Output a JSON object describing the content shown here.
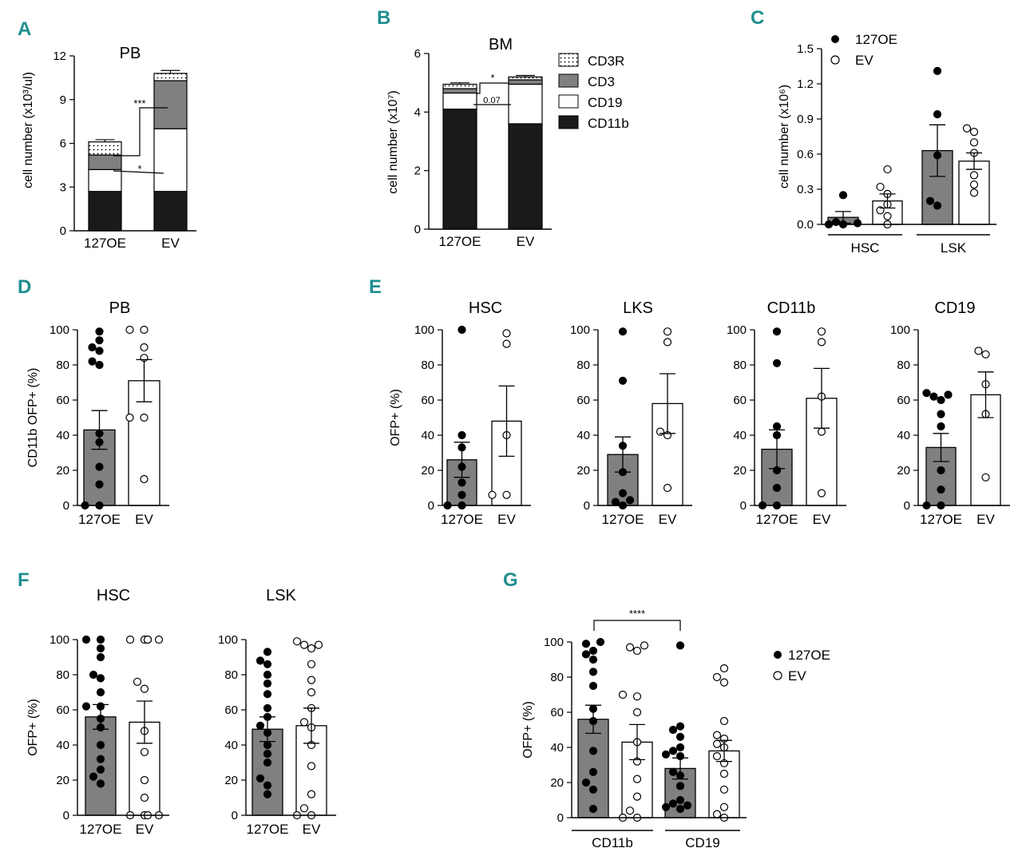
{
  "panel_labels": [
    "A",
    "B",
    "C",
    "D",
    "E",
    "F",
    "G"
  ],
  "colors": {
    "label": "#1f8f8f",
    "bar_oe": "#808080",
    "bar_ev": "#ffffff",
    "cd11b": "#1a1a1a",
    "cd3": "#808080",
    "cd19": "#ffffff"
  },
  "chart_data": [
    {
      "id": "A",
      "type": "bar",
      "stacked": true,
      "title": "PB",
      "ylabel": "cell number (x10³/ul)",
      "ylim": [
        0,
        12
      ],
      "yticks": [
        0,
        3,
        6,
        9,
        12
      ],
      "categories": [
        "127OE",
        "EV"
      ],
      "series": [
        {
          "name": "CD11b",
          "values": [
            2.7,
            2.7
          ],
          "err": [
            0.9,
            0.6
          ]
        },
        {
          "name": "CD19",
          "values": [
            1.5,
            4.3
          ],
          "err": [
            0.6,
            0.9
          ]
        },
        {
          "name": "CD3",
          "values": [
            1.0,
            3.3
          ],
          "err": [
            0.4,
            0.3
          ]
        },
        {
          "name": "CD3R",
          "values": [
            0.9,
            0.5
          ],
          "err": [
            0.15,
            0.2
          ]
        }
      ],
      "annotations": [
        {
          "text": "***"
        },
        {
          "text": "*"
        }
      ]
    },
    {
      "id": "B",
      "type": "bar",
      "stacked": true,
      "title": "BM",
      "ylabel": "cell number (x10⁷)",
      "ylim": [
        0,
        6
      ],
      "yticks": [
        0,
        2,
        4,
        6
      ],
      "categories": [
        "127OE",
        "EV"
      ],
      "series": [
        {
          "name": "CD11b",
          "values": [
            4.1,
            3.6
          ],
          "err": [
            0.3,
            0.7
          ]
        },
        {
          "name": "CD19",
          "values": [
            0.55,
            1.35
          ],
          "err": [
            0.1,
            0.15
          ]
        },
        {
          "name": "CD3",
          "values": [
            0.15,
            0.15
          ],
          "err": [
            0.05,
            0.05
          ]
        },
        {
          "name": "CD3R",
          "values": [
            0.15,
            0.1
          ],
          "err": [
            0.05,
            0.05
          ]
        }
      ],
      "legend": [
        "CD3R",
        "CD3",
        "CD19",
        "CD11b"
      ],
      "annotations": [
        {
          "text": "*"
        },
        {
          "text": "0.07"
        }
      ]
    },
    {
      "id": "C",
      "type": "bar+scatter",
      "title": "",
      "ylabel": "cell number (x10⁶)",
      "ylim": [
        0,
        1.5
      ],
      "yticks": [
        "0.0",
        "0.3",
        "0.6",
        "0.9",
        "1.2",
        "1.5"
      ],
      "group_labels": [
        "HSC",
        "LSK"
      ],
      "bars": [
        {
          "group": "HSC",
          "series": "127OE",
          "mean": 0.06,
          "sem": 0.05,
          "points": [
            0.0,
            0.0,
            0.01,
            0.02,
            0.25
          ]
        },
        {
          "group": "HSC",
          "series": "EV",
          "mean": 0.2,
          "sem": 0.06,
          "points": [
            0.0,
            0.07,
            0.12,
            0.17,
            0.26,
            0.32,
            0.47
          ]
        },
        {
          "group": "LSK",
          "series": "127OE",
          "mean": 0.63,
          "sem": 0.22,
          "points": [
            0.16,
            0.2,
            0.59,
            0.94,
            1.31
          ]
        },
        {
          "group": "LSK",
          "series": "EV",
          "mean": 0.54,
          "sem": 0.07,
          "points": [
            0.27,
            0.34,
            0.42,
            0.61,
            0.7,
            0.79,
            0.82
          ]
        }
      ],
      "legend": [
        "127OE",
        "EV"
      ]
    },
    {
      "id": "D",
      "type": "bar+scatter",
      "title": "PB",
      "ylabel": "CD11b OFP+ (%)",
      "ylim": [
        0,
        100
      ],
      "yticks": [
        0,
        20,
        40,
        60,
        80,
        100
      ],
      "categories": [
        "127OE",
        "EV"
      ],
      "bars": [
        {
          "series": "127OE",
          "mean": 43,
          "sem": 11,
          "points": [
            0,
            0,
            12,
            22,
            36,
            41,
            80,
            82,
            88,
            90,
            94,
            99
          ]
        },
        {
          "series": "EV",
          "mean": 71,
          "sem": 12,
          "points": [
            15,
            50,
            50,
            84,
            90,
            100,
            100
          ]
        }
      ]
    },
    {
      "id": "E1",
      "type": "bar+scatter",
      "title": "HSC",
      "ylabel": "OFP+ (%)",
      "ylim": [
        0,
        100
      ],
      "yticks": [
        0,
        20,
        40,
        60,
        80,
        100
      ],
      "categories": [
        "127OE",
        "EV"
      ],
      "bars": [
        {
          "series": "127OE",
          "mean": 26,
          "sem": 10,
          "points": [
            0,
            0,
            6,
            13,
            22,
            33,
            40,
            100
          ]
        },
        {
          "series": "EV",
          "mean": 48,
          "sem": 20,
          "points": [
            6,
            6,
            40,
            92,
            98
          ]
        }
      ]
    },
    {
      "id": "E2",
      "type": "bar+scatter",
      "title": "LKS",
      "ylabel": "",
      "ylim": [
        0,
        100
      ],
      "yticks": [
        0,
        20,
        40,
        60,
        80,
        100
      ],
      "categories": [
        "127OE",
        "EV"
      ],
      "bars": [
        {
          "series": "127OE",
          "mean": 29,
          "sem": 10,
          "points": [
            0,
            2,
            3,
            7,
            19,
            34,
            71,
            99
          ]
        },
        {
          "series": "EV",
          "mean": 58,
          "sem": 17,
          "points": [
            10,
            40,
            42,
            93,
            99
          ]
        }
      ]
    },
    {
      "id": "E3",
      "type": "bar+scatter",
      "title": "CD11b",
      "ylabel": "",
      "ylim": [
        0,
        100
      ],
      "yticks": [
        0,
        20,
        40,
        60,
        80,
        100
      ],
      "categories": [
        "127OE",
        "EV"
      ],
      "bars": [
        {
          "series": "127OE",
          "mean": 32,
          "sem": 11,
          "points": [
            0,
            0,
            10,
            20,
            40,
            45,
            81,
            99
          ]
        },
        {
          "series": "EV",
          "mean": 61,
          "sem": 17,
          "points": [
            7,
            42,
            62,
            93,
            99
          ]
        }
      ]
    },
    {
      "id": "E4",
      "type": "bar+scatter",
      "title": "CD19",
      "ylabel": "",
      "ylim": [
        0,
        100
      ],
      "yticks": [
        0,
        20,
        40,
        60,
        80,
        100
      ],
      "categories": [
        "127OE",
        "EV"
      ],
      "bars": [
        {
          "series": "127OE",
          "mean": 33,
          "sem": 8,
          "points": [
            0,
            0,
            9,
            20,
            45,
            52,
            60,
            62,
            63,
            64
          ]
        },
        {
          "series": "EV",
          "mean": 63,
          "sem": 13,
          "points": [
            16,
            52,
            69,
            86,
            88
          ]
        }
      ]
    },
    {
      "id": "F1",
      "type": "bar+scatter",
      "title": "HSC",
      "ylabel": "OFP+ (%)",
      "ylim": [
        0,
        100
      ],
      "yticks": [
        0,
        20,
        40,
        60,
        80,
        100
      ],
      "categories": [
        "127OE",
        "EV"
      ],
      "bars": [
        {
          "series": "127OE",
          "mean": 56,
          "sem": 7,
          "points": [
            18,
            22,
            26,
            32,
            40,
            50,
            55,
            62,
            62,
            70,
            78,
            80,
            90,
            95,
            100,
            100
          ]
        },
        {
          "series": "EV",
          "mean": 53,
          "sem": 12,
          "points": [
            0,
            0,
            0,
            0,
            10,
            20,
            36,
            48,
            72,
            76,
            100,
            100,
            100,
            100,
            100,
            100
          ]
        }
      ]
    },
    {
      "id": "F2",
      "type": "bar+scatter",
      "title": "LSK",
      "ylabel": "",
      "ylim": [
        0,
        100
      ],
      "yticks": [
        0,
        20,
        40,
        60,
        80,
        100
      ],
      "categories": [
        "127OE",
        "EV"
      ],
      "bars": [
        {
          "series": "127OE",
          "mean": 49,
          "sem": 7,
          "points": [
            12,
            17,
            21,
            30,
            35,
            40,
            47,
            51,
            56,
            61,
            69,
            75,
            80,
            86,
            88,
            93
          ]
        },
        {
          "series": "EV",
          "mean": 51,
          "sem": 10,
          "points": [
            0,
            0,
            4,
            12,
            28,
            40,
            50,
            53,
            61,
            70,
            77,
            86,
            95,
            97,
            97,
            99
          ]
        }
      ]
    },
    {
      "id": "G",
      "type": "bar+scatter",
      "title": "",
      "ylabel": "OFP+ (%)",
      "ylim": [
        0,
        100
      ],
      "yticks": [
        0,
        20,
        40,
        60,
        80,
        100
      ],
      "group_labels": [
        "CD11b",
        "CD19"
      ],
      "bars": [
        {
          "group": "CD11b",
          "series": "127OE",
          "mean": 56,
          "sem": 8,
          "points": [
            5,
            16,
            20,
            26,
            38,
            55,
            62,
            75,
            83,
            90,
            93,
            95,
            99,
            100
          ]
        },
        {
          "group": "CD11b",
          "series": "EV",
          "mean": 43,
          "sem": 10,
          "points": [
            0,
            0,
            4,
            12,
            22,
            32,
            43,
            60,
            69,
            70,
            95,
            97,
            98
          ]
        },
        {
          "group": "CD19",
          "series": "127OE",
          "mean": 28,
          "sem": 6,
          "points": [
            5,
            6,
            7,
            8,
            10,
            18,
            24,
            26,
            35,
            36,
            38,
            40,
            46,
            50,
            52,
            98
          ]
        },
        {
          "group": "CD19",
          "series": "EV",
          "mean": 38,
          "sem": 6,
          "points": [
            0,
            2,
            6,
            16,
            25,
            31,
            35,
            40,
            42,
            45,
            47,
            55,
            77,
            80,
            85
          ]
        }
      ],
      "legend": [
        "127OE",
        "EV"
      ],
      "annotations": [
        {
          "text": "****"
        }
      ]
    }
  ]
}
